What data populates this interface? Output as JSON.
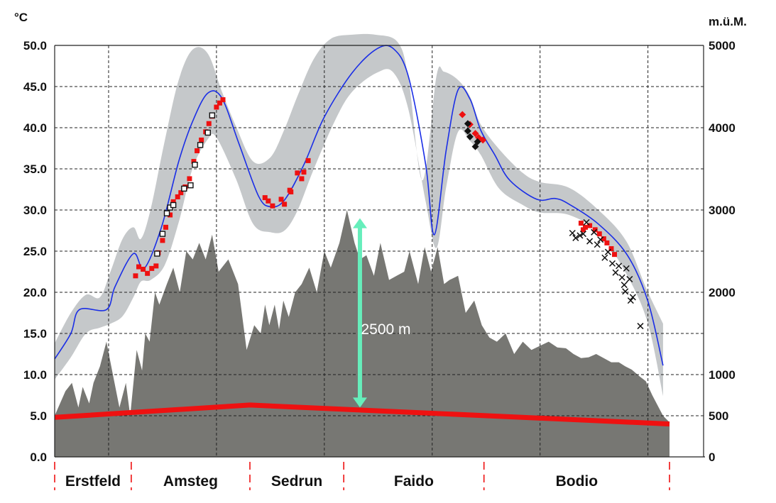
{
  "chart_data": {
    "type": "line",
    "left_axis": {
      "unit": "°C",
      "ylim": [
        0,
        50
      ],
      "ticks": [
        "0.0",
        "5.0",
        "10.0",
        "15.0",
        "20.0",
        "25.0",
        "30.0",
        "35.0",
        "40.0",
        "45.0",
        "50.0"
      ]
    },
    "right_axis": {
      "unit": "m.ü.M.",
      "ylim": [
        0,
        5000
      ],
      "ticks": [
        {
          "label": "0",
          "value": 0
        },
        {
          "label": "500",
          "value": 500
        },
        {
          "label": "1000",
          "value": 1000
        },
        {
          "label": "2000",
          "value": 2000
        },
        {
          "label": "3000",
          "value": 3000
        },
        {
          "label": "4000",
          "value": 4000
        },
        {
          "label": "5000",
          "value": 5000
        }
      ]
    },
    "x_axis": {
      "xlim": [
        0,
        57
      ],
      "sections": [
        {
          "label": "Erstfeld",
          "start": 0,
          "end": 7.1
        },
        {
          "label": "Amsteg",
          "start": 7.1,
          "end": 18.1
        },
        {
          "label": "Sedrun",
          "start": 18.1,
          "end": 26.8
        },
        {
          "label": "Faido",
          "start": 26.8,
          "end": 39.8
        },
        {
          "label": "Bodio",
          "start": 39.8,
          "end": 57
        }
      ]
    },
    "grid": true,
    "colors": {
      "prediction": "#1a2ee6",
      "band": "#c5c8ca",
      "terrain": "#777773",
      "tunnel": "#ee1111",
      "arrow": "#66eebb",
      "measured_red": "#ee1111",
      "measured_black": "#111111"
    },
    "annotations": [
      {
        "text": "2500 m",
        "x": 28.4,
        "elevation": 1550
      }
    ],
    "overburden_arrow": {
      "x": 28.3,
      "from_elevation": 600,
      "to_elevation": 2900
    },
    "prediction": {
      "x": [
        0,
        1.5,
        2.3,
        4.8,
        5.6,
        7.3,
        8.3,
        9.9,
        11.5,
        12.8,
        14.2,
        15.5,
        17.1,
        18.9,
        20.0,
        21.3,
        23.1,
        25.0,
        27.6,
        29.9,
        31.4,
        32.8,
        34.4,
        35.2,
        36.3,
        37.4,
        38.5,
        39.5,
        40.8,
        42.2,
        44.7,
        46.4,
        47.7,
        50.4,
        53.1,
        55.0,
        56.4
      ],
      "y": [
        11.9,
        15.0,
        17.9,
        17.9,
        20.7,
        24.7,
        22.9,
        27.9,
        35.9,
        40.8,
        44.2,
        43.6,
        38.0,
        31.7,
        30.4,
        31.2,
        35.5,
        41.3,
        46.7,
        49.6,
        49.6,
        46.2,
        35.5,
        27.0,
        37.3,
        44.6,
        43.5,
        39.7,
        36.7,
        33.6,
        31.3,
        31.4,
        30.7,
        28.3,
        24.5,
        18.9,
        11.1
      ]
    },
    "band_upper": {
      "x": [
        0,
        1.5,
        2.9,
        4.2,
        5.2,
        6.3,
        7.3,
        8.0,
        8.9,
        10.2,
        11.5,
        12.8,
        14.2,
        15.5,
        16.8,
        18.4,
        20.0,
        21.3,
        22.5,
        24.0,
        25.6,
        27.6,
        29.7,
        31.8,
        32.8,
        34.1,
        35.4,
        36.1,
        37.4,
        38.5,
        39.5,
        41.2,
        43.4,
        45.0,
        47.7,
        50.5,
        53.0,
        54.8,
        56.4
      ],
      "y": [
        13.8,
        17.5,
        19.7,
        19.4,
        22.6,
        26.5,
        27.9,
        26.5,
        30.1,
        38.4,
        45.8,
        49.5,
        49.0,
        44.4,
        40.2,
        35.9,
        36.4,
        39.8,
        43.8,
        48.3,
        50.8,
        51.3,
        51.3,
        50.4,
        46.0,
        33.6,
        46.3,
        46.8,
        45.8,
        43.8,
        40.4,
        37.4,
        34.5,
        33.4,
        32.7,
        29.9,
        26.2,
        20.6,
        16.2
      ]
    },
    "band_lower": {
      "x": [
        56.4,
        55.0,
        53.1,
        50.5,
        47.7,
        45.0,
        43.4,
        41.2,
        39.5,
        38.5,
        37.4,
        36.3,
        35.4,
        34.4,
        32.8,
        31.4,
        29.9,
        27.6,
        26.0,
        24.0,
        22.5,
        21.3,
        20.0,
        18.4,
        16.8,
        15.0,
        14.2,
        12.8,
        11.5,
        10.2,
        8.9,
        8.0,
        7.3,
        6.3,
        5.2,
        4.2,
        2.9,
        1.5,
        0
      ],
      "y": [
        7.4,
        16.2,
        22.0,
        27.1,
        29.4,
        29.7,
        30.6,
        32.6,
        36.7,
        38.4,
        39.5,
        32.8,
        25.4,
        31.0,
        42.2,
        46.7,
        46.7,
        44.4,
        40.9,
        34.9,
        29.9,
        27.5,
        27.3,
        28.3,
        33.8,
        38.8,
        38.6,
        35.1,
        28.5,
        23.3,
        21.5,
        21.3,
        19.4,
        17.1,
        16.2,
        15.7,
        15.0,
        12.1,
        9.4
      ]
    },
    "terrain": {
      "x": [
        0,
        1.0,
        1.6,
        2.2,
        2.6,
        3.2,
        3.6,
        4.2,
        4.8,
        5.4,
        6.0,
        6.6,
        7.0,
        7.6,
        8.1,
        8.4,
        8.8,
        9.3,
        9.7,
        10.4,
        11.0,
        11.6,
        12.2,
        12.8,
        13.4,
        14.0,
        14.6,
        15.2,
        16.1,
        17.0,
        17.8,
        18.5,
        19.1,
        19.5,
        19.9,
        20.4,
        20.8,
        21.2,
        21.7,
        22.3,
        22.9,
        23.6,
        24.3,
        25.0,
        25.6,
        26.4,
        27.1,
        27.8,
        28.3,
        28.9,
        29.6,
        30.2,
        31.0,
        31.7,
        32.4,
        32.9,
        33.7,
        34.3,
        34.9,
        35.5,
        36.1,
        36.6,
        37.4,
        38.1,
        38.9,
        39.6,
        40.3,
        41.0,
        41.8,
        42.6,
        43.4,
        44.2,
        45.0,
        45.8,
        46.6,
        47.4,
        48.1,
        48.8,
        49.5,
        50.2,
        50.9,
        51.6,
        52.3,
        52.9,
        53.5,
        54.2,
        54.8,
        55.4,
        56.0,
        56.4,
        57.0
      ],
      "y": [
        50,
        80,
        90,
        60,
        85,
        65,
        90,
        110,
        140,
        100,
        60,
        90,
        50,
        130,
        105,
        150,
        140,
        200,
        185,
        210,
        230,
        200,
        250,
        240,
        260,
        240,
        270,
        225,
        240,
        210,
        130,
        160,
        150,
        185,
        160,
        185,
        155,
        190,
        170,
        200,
        210,
        230,
        200,
        250,
        230,
        260,
        300,
        260,
        240,
        245,
        220,
        260,
        215,
        220,
        225,
        250,
        210,
        255,
        225,
        255,
        210,
        215,
        220,
        175,
        190,
        160,
        145,
        140,
        150,
        125,
        140,
        130,
        135,
        140,
        133,
        132,
        125,
        120,
        121,
        125,
        120,
        115,
        115,
        110,
        106,
        98,
        92,
        75,
        60,
        50,
        42
      ]
    },
    "tunnel": {
      "x": [
        0,
        18.1,
        57
      ],
      "elevation": [
        480,
        630,
        400
      ]
    },
    "series": [
      {
        "marker": "filled-square",
        "color": "#ee1111",
        "points": [
          [
            7.5,
            22.0
          ],
          [
            7.8,
            23.1
          ],
          [
            8.2,
            22.8
          ],
          [
            8.6,
            22.3
          ],
          [
            9.0,
            22.9
          ],
          [
            9.4,
            23.2
          ],
          [
            9.6,
            24.8
          ],
          [
            10.0,
            26.3
          ],
          [
            10.3,
            27.9
          ],
          [
            10.7,
            29.4
          ],
          [
            11.0,
            31.0
          ],
          [
            11.4,
            31.6
          ],
          [
            11.7,
            32.1
          ],
          [
            12.1,
            32.8
          ],
          [
            12.5,
            33.8
          ],
          [
            12.9,
            35.9
          ],
          [
            13.2,
            37.2
          ],
          [
            13.6,
            38.5
          ],
          [
            14.0,
            39.5
          ],
          [
            14.3,
            40.5
          ],
          [
            14.6,
            41.4
          ],
          [
            15.0,
            42.5
          ],
          [
            15.3,
            43.0
          ],
          [
            15.6,
            43.4
          ],
          [
            19.5,
            31.5
          ],
          [
            19.8,
            31.1
          ],
          [
            20.2,
            30.5
          ],
          [
            21.0,
            31.3
          ],
          [
            21.9,
            32.2
          ],
          [
            22.5,
            34.5
          ],
          [
            22.9,
            33.8
          ],
          [
            23.1,
            34.6
          ],
          [
            23.5,
            36.0
          ],
          [
            21.3,
            30.7
          ],
          [
            21.8,
            32.4
          ]
        ]
      },
      {
        "marker": "open-square",
        "color": "#111111",
        "points": [
          [
            9.5,
            24.7
          ],
          [
            10.0,
            27.1
          ],
          [
            10.4,
            29.6
          ],
          [
            10.7,
            30.3
          ],
          [
            11.0,
            30.6
          ],
          [
            12.0,
            32.6
          ],
          [
            12.6,
            33.0
          ],
          [
            13.0,
            35.5
          ],
          [
            13.5,
            37.9
          ],
          [
            14.2,
            39.4
          ],
          [
            14.6,
            41.5
          ]
        ]
      },
      {
        "marker": "filled-square",
        "color": "#ee1111",
        "points": [
          [
            49.2,
            27.9
          ],
          [
            49.6,
            28.1
          ],
          [
            50.1,
            27.6
          ],
          [
            50.5,
            27.1
          ],
          [
            50.9,
            26.5
          ],
          [
            51.2,
            26.0
          ],
          [
            51.6,
            25.3
          ],
          [
            51.9,
            24.6
          ],
          [
            48.8,
            28.4
          ],
          [
            49.0,
            27.6
          ]
        ]
      },
      {
        "marker": "filled-diamond",
        "color": "#ee1111",
        "points": [
          [
            37.8,
            41.6
          ],
          [
            38.5,
            40.4
          ],
          [
            39.0,
            39.3
          ],
          [
            39.3,
            38.8
          ],
          [
            39.7,
            38.5
          ]
        ]
      },
      {
        "marker": "filled-diamond",
        "color": "#111111",
        "points": [
          [
            38.3,
            40.5
          ],
          [
            38.3,
            39.6
          ],
          [
            38.5,
            38.9
          ],
          [
            39.2,
            38.3
          ],
          [
            39.0,
            37.7
          ]
        ]
      },
      {
        "marker": "cross",
        "color": "#111111",
        "points": [
          [
            48.0,
            27.2
          ],
          [
            48.3,
            26.6
          ],
          [
            48.7,
            26.9
          ],
          [
            49.0,
            27.1
          ],
          [
            49.3,
            28.5
          ],
          [
            49.6,
            26.2
          ],
          [
            50.0,
            27.3
          ],
          [
            50.3,
            25.8
          ],
          [
            50.6,
            26.4
          ],
          [
            51.0,
            24.2
          ],
          [
            51.3,
            24.9
          ],
          [
            51.7,
            23.5
          ],
          [
            52.0,
            22.4
          ],
          [
            52.3,
            23.2
          ],
          [
            52.6,
            21.8
          ],
          [
            52.8,
            20.9
          ],
          [
            52.9,
            20.1
          ],
          [
            53.3,
            21.6
          ],
          [
            53.6,
            19.4
          ],
          [
            53.0,
            22.9
          ],
          [
            53.4,
            19.0
          ],
          [
            54.3,
            15.9
          ]
        ]
      }
    ]
  }
}
